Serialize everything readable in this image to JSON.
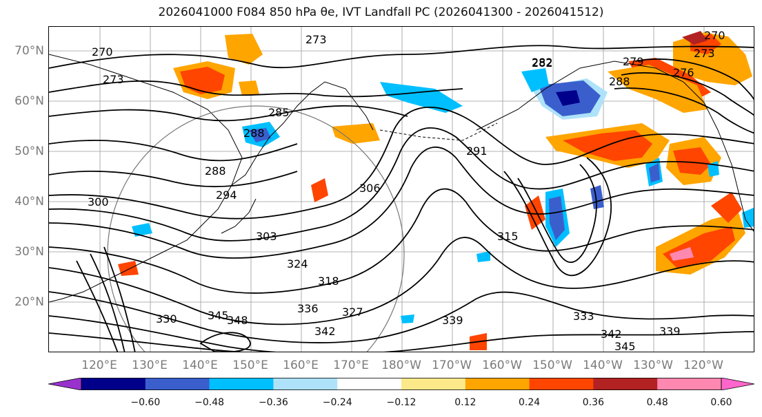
{
  "title": "2026041000 F084 850 hPa θe, IVT Landfall PC (2026041300 - 2026041512)",
  "lat_labels": [
    "70°N",
    "60°N",
    "50°N",
    "40°N",
    "30°N",
    "20°N"
  ],
  "lon_labels": [
    "120°E",
    "130°E",
    "140°E",
    "150°E",
    "160°E",
    "170°E",
    "180°W",
    "170°W",
    "160°W",
    "150°W",
    "140°W",
    "130°W",
    "120°W"
  ],
  "contour_labels": [
    "270",
    "273",
    "273",
    "282",
    "288",
    "285",
    "288",
    "294",
    "300",
    "303",
    "306",
    "315",
    "324",
    "318",
    "327",
    "336",
    "345",
    "348",
    "342",
    "339",
    "333",
    "339",
    "342",
    "345",
    "330",
    "291",
    "282",
    "288",
    "279",
    "276",
    "273",
    "270"
  ],
  "colorbar": {
    "ticks": [
      "−0.60",
      "−0.48",
      "−0.36",
      "−0.24",
      "−0.12",
      "0.12",
      "0.24",
      "0.36",
      "0.48",
      "0.60"
    ],
    "colors": [
      "#9932cc",
      "#00008b",
      "#3a5fcd",
      "#00bfff",
      "#aee2fb",
      "#ffffff",
      "#fce98a",
      "#ffa500",
      "#ff4500",
      "#b22222",
      "#ff88b0",
      "#ff66cc"
    ]
  }
}
